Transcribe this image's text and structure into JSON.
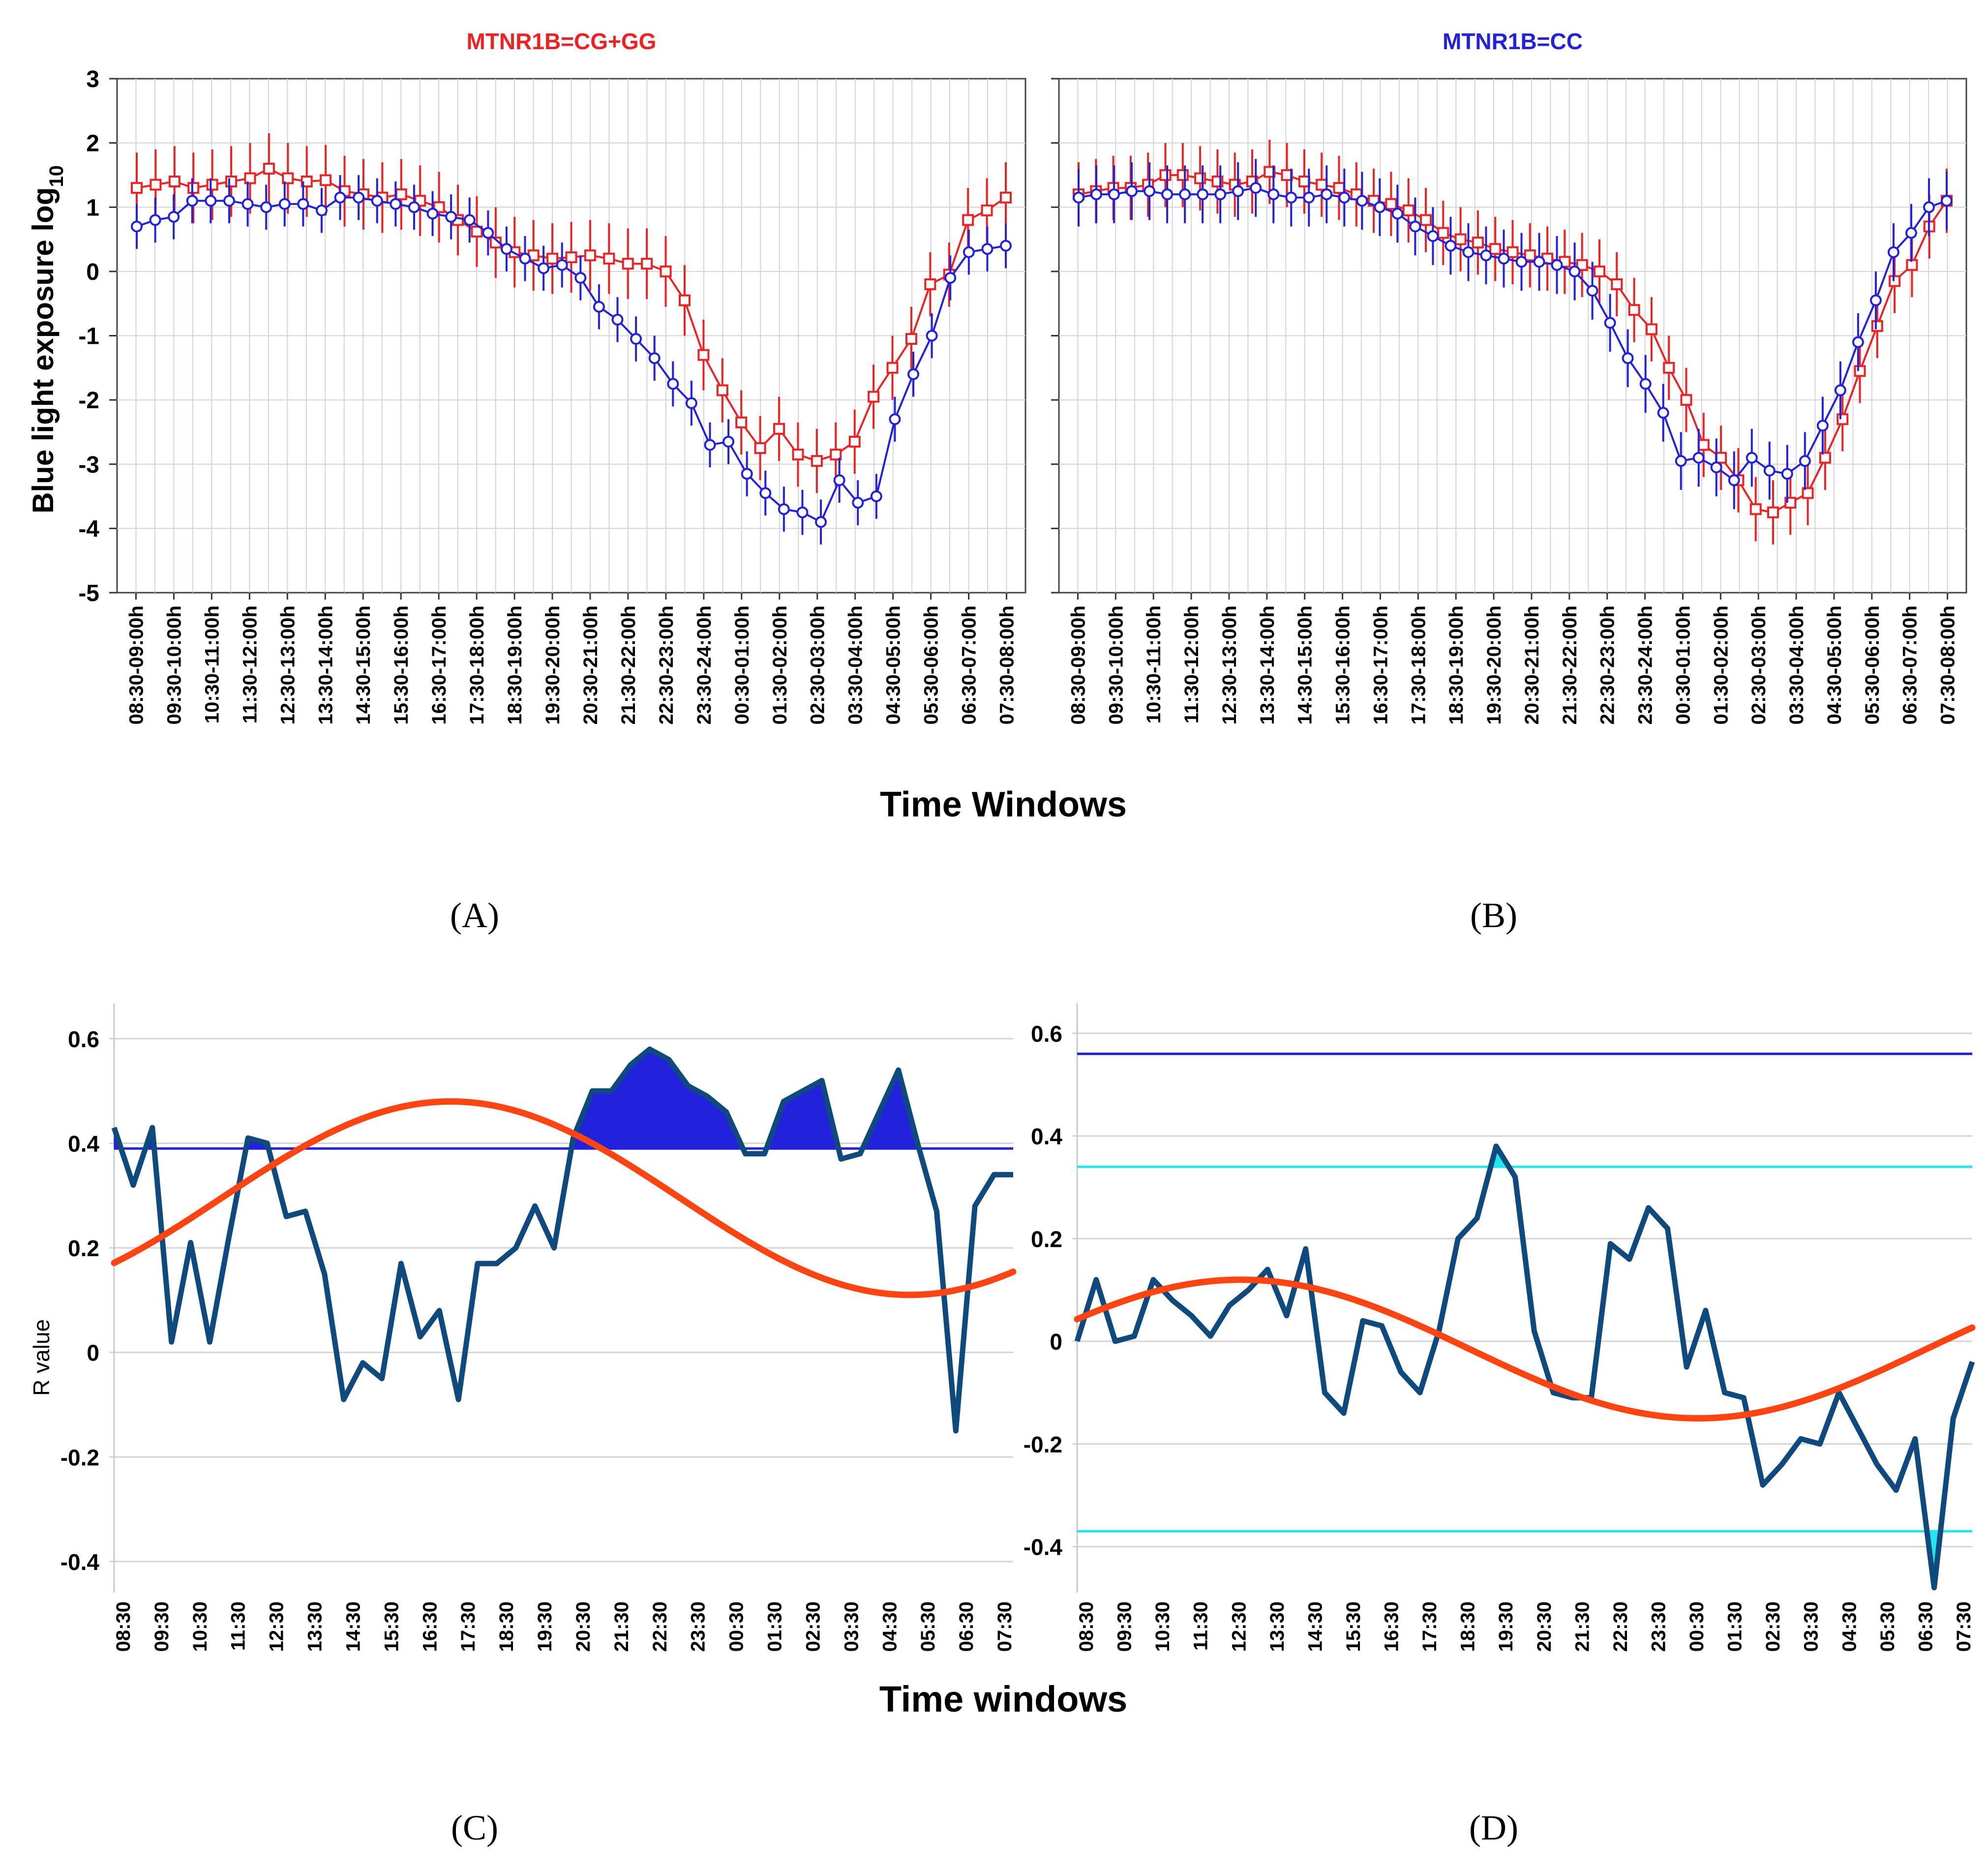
{
  "figure": {
    "labels": [
      "(A)",
      "(B)",
      "(C)",
      "(D)"
    ]
  },
  "colors": {
    "red": "#ee2222",
    "blue": "#2222dd",
    "navy": "#0f4a7e",
    "fit": "#ff4411",
    "cyan": "#22e6ee",
    "threshold": "#2222dd",
    "grid": "#d4d4d4"
  },
  "time_windows_full": [
    "08:30-09:00h",
    "09:30-10:00h",
    "10:30-11:00h",
    "11:30-12:00h",
    "12:30-13:00h",
    "13:30-14:00h",
    "14:30-15:00h",
    "15:30-16:00h",
    "16:30-17:00h",
    "17:30-18:00h",
    "18:30-19:00h",
    "19:30-20:00h",
    "20:30-21:00h",
    "21:30-22:00h",
    "22:30-23:00h",
    "23:30-24:00h",
    "00:30-01:00h",
    "01:30-02:00h",
    "02:30-03:00h",
    "03:30-04:00h",
    "04:30-05:00h",
    "05:30-06:00h",
    "06:30-07:00h",
    "07:30-08:00h"
  ],
  "time_windows_short": [
    "08:30",
    "09:30",
    "10:30",
    "11:30",
    "12:30",
    "13:30",
    "14:30",
    "15:30",
    "16:30",
    "17:30",
    "18:30",
    "19:30",
    "20:30",
    "21:30",
    "22:30",
    "23:30",
    "00:30",
    "01:30",
    "02:30",
    "03:30",
    "04:30",
    "05:30",
    "06:30",
    "07:30"
  ],
  "chart_data": [
    {
      "panel": "A",
      "type": "line",
      "title": "MTNR1B=CG+GG",
      "title_color": "#ee2222",
      "ylabel": "Blue light exposure log",
      "ylabel_sub": "10",
      "xlabel": "Time Windows",
      "ylim": [
        -5,
        3
      ],
      "yticks": [
        3,
        2,
        1,
        0,
        -1,
        -2,
        -3,
        -4,
        -5
      ],
      "series": [
        {
          "name": "red",
          "color": "#ee2222",
          "marker": "square",
          "values": [
            1.3,
            1.35,
            1.4,
            1.3,
            1.35,
            1.4,
            1.45,
            1.6,
            1.45,
            1.4,
            1.42,
            1.25,
            1.2,
            1.15,
            1.2,
            1.1,
            1.0,
            0.8,
            0.62,
            0.45,
            0.3,
            0.25,
            0.2,
            0.22,
            0.25,
            0.2,
            0.12,
            0.12,
            0.0,
            -0.45,
            -1.3,
            -1.85,
            -2.35,
            -2.75,
            -2.45,
            -2.85,
            -2.95,
            -2.85,
            -2.65,
            -1.95,
            -1.5,
            -1.05,
            -0.2,
            -0.05,
            0.8,
            0.95,
            1.15
          ],
          "errors": [
            0.55,
            0.55,
            0.55,
            0.55,
            0.55,
            0.55,
            0.55,
            0.55,
            0.55,
            0.55,
            0.55,
            0.55,
            0.55,
            0.55,
            0.55,
            0.55,
            0.55,
            0.55,
            0.55,
            0.55,
            0.55,
            0.55,
            0.55,
            0.55,
            0.55,
            0.55,
            0.55,
            0.55,
            0.55,
            0.55,
            0.55,
            0.5,
            0.5,
            0.5,
            0.5,
            0.5,
            0.5,
            0.5,
            0.5,
            0.5,
            0.5,
            0.5,
            0.5,
            0.5,
            0.5,
            0.5,
            0.55
          ]
        },
        {
          "name": "blue",
          "color": "#2222dd",
          "marker": "circle",
          "values": [
            0.7,
            0.8,
            0.85,
            1.1,
            1.1,
            1.1,
            1.05,
            1.0,
            1.05,
            1.05,
            0.95,
            1.15,
            1.15,
            1.1,
            1.05,
            1.0,
            0.9,
            0.85,
            0.8,
            0.6,
            0.35,
            0.2,
            0.05,
            0.1,
            -0.1,
            -0.55,
            -0.75,
            -1.05,
            -1.35,
            -1.75,
            -2.05,
            -2.7,
            -2.65,
            -3.15,
            -3.45,
            -3.7,
            -3.75,
            -3.9,
            -3.25,
            -3.6,
            -3.5,
            -2.3,
            -1.6,
            -1.0,
            -0.1,
            0.3,
            0.35,
            0.4
          ],
          "errors": [
            0.35,
            0.35,
            0.35,
            0.35,
            0.35,
            0.35,
            0.35,
            0.35,
            0.35,
            0.35,
            0.35,
            0.35,
            0.35,
            0.35,
            0.35,
            0.35,
            0.35,
            0.35,
            0.35,
            0.35,
            0.35,
            0.35,
            0.35,
            0.35,
            0.35,
            0.35,
            0.35,
            0.35,
            0.35,
            0.35,
            0.35,
            0.35,
            0.35,
            0.35,
            0.35,
            0.35,
            0.35,
            0.35,
            0.35,
            0.35,
            0.35,
            0.35,
            0.35,
            0.35,
            0.35,
            0.35,
            0.35,
            0.35
          ]
        }
      ]
    },
    {
      "panel": "B",
      "type": "line",
      "title": "MTNR1B=CC",
      "title_color": "#2222dd",
      "ylim": [
        -5,
        3
      ],
      "series": [
        {
          "name": "red",
          "color": "#ee2222",
          "marker": "square",
          "values": [
            1.2,
            1.25,
            1.3,
            1.3,
            1.35,
            1.5,
            1.5,
            1.45,
            1.4,
            1.35,
            1.4,
            1.55,
            1.5,
            1.4,
            1.35,
            1.3,
            1.2,
            1.1,
            1.05,
            0.95,
            0.8,
            0.6,
            0.5,
            0.45,
            0.35,
            0.3,
            0.25,
            0.2,
            0.15,
            0.1,
            0.0,
            -0.2,
            -0.6,
            -0.9,
            -1.5,
            -2.0,
            -2.7,
            -2.9,
            -3.25,
            -3.7,
            -3.75,
            -3.6,
            -3.45,
            -2.9,
            -2.3,
            -1.55,
            -0.85,
            -0.15,
            0.1,
            0.7,
            1.1
          ],
          "errors": [
            0.5,
            0.5,
            0.5,
            0.5,
            0.5,
            0.5,
            0.5,
            0.5,
            0.5,
            0.5,
            0.5,
            0.5,
            0.5,
            0.5,
            0.5,
            0.5,
            0.5,
            0.5,
            0.5,
            0.5,
            0.5,
            0.5,
            0.5,
            0.5,
            0.5,
            0.5,
            0.5,
            0.5,
            0.5,
            0.5,
            0.5,
            0.5,
            0.5,
            0.5,
            0.5,
            0.5,
            0.5,
            0.5,
            0.5,
            0.5,
            0.5,
            0.5,
            0.5,
            0.5,
            0.5,
            0.5,
            0.5,
            0.5,
            0.5,
            0.5,
            0.5
          ]
        },
        {
          "name": "blue",
          "color": "#2222dd",
          "marker": "circle",
          "values": [
            1.15,
            1.2,
            1.2,
            1.25,
            1.25,
            1.2,
            1.2,
            1.2,
            1.2,
            1.25,
            1.3,
            1.2,
            1.15,
            1.15,
            1.2,
            1.15,
            1.1,
            1.0,
            0.9,
            0.7,
            0.55,
            0.4,
            0.3,
            0.25,
            0.2,
            0.15,
            0.15,
            0.1,
            0.0,
            -0.3,
            -0.8,
            -1.35,
            -1.75,
            -2.2,
            -2.95,
            -2.9,
            -3.05,
            -3.25,
            -2.9,
            -3.1,
            -3.15,
            -2.95,
            -2.4,
            -1.85,
            -1.1,
            -0.45,
            0.3,
            0.6,
            1.0,
            1.1
          ],
          "errors": [
            0.45,
            0.45,
            0.45,
            0.45,
            0.45,
            0.45,
            0.45,
            0.45,
            0.45,
            0.45,
            0.45,
            0.45,
            0.45,
            0.45,
            0.45,
            0.45,
            0.45,
            0.45,
            0.45,
            0.45,
            0.45,
            0.45,
            0.45,
            0.45,
            0.45,
            0.45,
            0.45,
            0.45,
            0.45,
            0.45,
            0.45,
            0.45,
            0.45,
            0.45,
            0.45,
            0.45,
            0.45,
            0.45,
            0.45,
            0.45,
            0.45,
            0.45,
            0.45,
            0.45,
            0.45,
            0.45,
            0.45,
            0.45,
            0.45,
            0.45
          ]
        }
      ]
    },
    {
      "panel": "C",
      "type": "line",
      "ylabel": "R value",
      "xlabel": "Time windows",
      "ylim": [
        -0.45,
        0.63
      ],
      "yticks": [
        0.6,
        0.4,
        0.2,
        0,
        -0.2,
        -0.4
      ],
      "ytick_labels": [
        "0.6",
        "0.4",
        "0.2",
        "0",
        "-0.2",
        "-0.4"
      ],
      "threshold": 0.39,
      "fit": {
        "mean": 0.295,
        "amplitude": 0.185,
        "peak_x": 17.6,
        "period": 24
      },
      "series": [
        {
          "name": "R value",
          "values": [
            0.43,
            0.32,
            0.43,
            0.02,
            0.21,
            0.02,
            0.22,
            0.41,
            0.4,
            0.26,
            0.27,
            0.15,
            -0.09,
            -0.02,
            -0.05,
            0.17,
            0.03,
            0.08,
            -0.09,
            0.17,
            0.17,
            0.2,
            0.28,
            0.2,
            0.41,
            0.5,
            0.5,
            0.55,
            0.58,
            0.56,
            0.51,
            0.49,
            0.46,
            0.38,
            0.38,
            0.48,
            0.5,
            0.52,
            0.37,
            0.38,
            0.46,
            0.54,
            0.4,
            0.27,
            -0.15,
            0.28,
            0.34,
            0.34
          ]
        }
      ]
    },
    {
      "panel": "D",
      "type": "line",
      "ylim": [
        -0.48,
        0.62
      ],
      "yticks": [
        0.6,
        0.4,
        0.2,
        0,
        -0.2,
        -0.4
      ],
      "ytick_labels": [
        "0.6",
        "0.4",
        "0.2",
        "0",
        "-0.2",
        "-0.4"
      ],
      "thresholds": {
        "upper_high": 0.56,
        "upper": 0.34,
        "lower": -0.37
      },
      "fit": {
        "mean": -0.015,
        "amplitude": 0.135,
        "peak_x": 8.6,
        "period": 24
      },
      "series": [
        {
          "name": "R value",
          "values": [
            0.0,
            0.12,
            0.0,
            0.01,
            0.12,
            0.08,
            0.05,
            0.01,
            0.07,
            0.1,
            0.14,
            0.05,
            0.18,
            -0.1,
            -0.14,
            0.04,
            0.03,
            -0.06,
            -0.1,
            0.02,
            0.2,
            0.24,
            0.38,
            0.32,
            0.02,
            -0.1,
            -0.11,
            -0.11,
            0.19,
            0.16,
            0.26,
            0.22,
            -0.05,
            0.06,
            -0.1,
            -0.11,
            -0.28,
            -0.24,
            -0.19,
            -0.2,
            -0.1,
            -0.17,
            -0.24,
            -0.29,
            -0.19,
            -0.48,
            -0.15,
            -0.04
          ]
        }
      ]
    }
  ]
}
